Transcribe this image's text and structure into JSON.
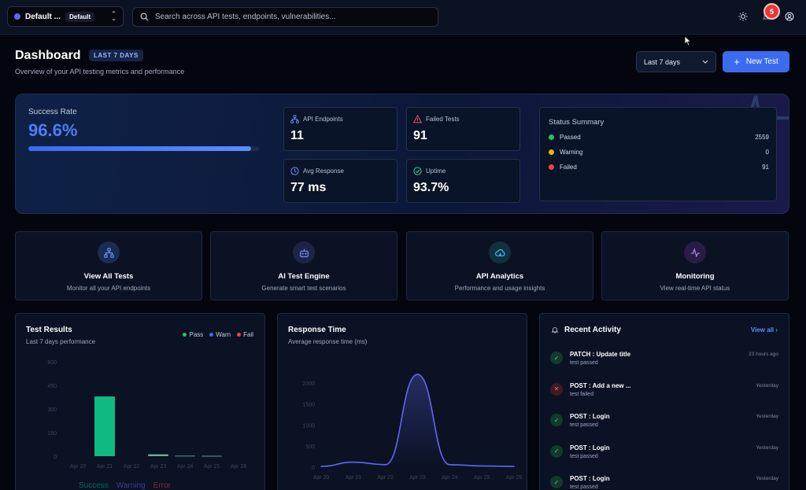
{
  "header": {
    "workspace": "Default ...",
    "workspace_badge": "Default",
    "search_placeholder": "Search across API tests, endpoints, vulnerabilities...",
    "notification_count": "5"
  },
  "page": {
    "title": "Dashboard",
    "range_pill": "LAST 7 DAYS",
    "subtitle": "Overview of your API testing metrics and performance",
    "date_select": "Last 7 days",
    "new_test": "New Test"
  },
  "summary": {
    "success_label": "Success Rate",
    "success_value": "96.6%",
    "success_fraction": 0.966,
    "metrics": [
      {
        "label": "API Endpoints",
        "value": "11",
        "icon": "network-icon",
        "color": "#6a8cf5"
      },
      {
        "label": "Failed Tests",
        "value": "91",
        "icon": "warning-triangle-icon",
        "color": "#ef5350"
      },
      {
        "label": "Avg Response",
        "value": "77 ms",
        "icon": "clock-icon",
        "color": "#7a8cff"
      },
      {
        "label": "Uptime",
        "value": "93.7%",
        "icon": "check-circle-icon",
        "color": "#34d399"
      }
    ],
    "status_title": "Status Summary",
    "status": [
      {
        "label": "Passed",
        "count": "2559",
        "color": "#22c55e"
      },
      {
        "label": "Warning",
        "count": "0",
        "color": "#eab308"
      },
      {
        "label": "Failed",
        "count": "91",
        "color": "#ef4444"
      }
    ]
  },
  "actions": [
    {
      "title": "View All Tests",
      "desc": "Monitor all your API endpoints",
      "icon": "network-icon",
      "bg": "#1a2c52",
      "color": "#6a8cf5"
    },
    {
      "title": "AI Test Engine",
      "desc": "Generate smart test scenarios",
      "icon": "robot-icon",
      "bg": "#1e2445",
      "color": "#7a8cff"
    },
    {
      "title": "API Analytics",
      "desc": "Performance and usage insights",
      "icon": "cloud-icon",
      "bg": "#13303f",
      "color": "#38bdf8"
    },
    {
      "title": "Monitoring",
      "desc": "View real-time API status",
      "icon": "activity-icon",
      "bg": "#2a1d45",
      "color": "#a78bfa"
    }
  ],
  "test_results": {
    "title": "Test Results",
    "subtitle": "Last 7 days performance",
    "legend": [
      "Pass",
      "Warn",
      "Fail"
    ],
    "bottom_legend": [
      "Success",
      "Warning",
      "Error"
    ]
  },
  "response_time": {
    "title": "Response Time",
    "subtitle": "Average response time (ms)"
  },
  "chart_data": [
    {
      "type": "bar",
      "categories": [
        "Apr 20",
        "Apr 21",
        "Apr 22",
        "Apr 23",
        "Apr 24",
        "Apr 25",
        "Apr 26"
      ],
      "series": [
        {
          "name": "Pass",
          "values": [
            0,
            380,
            0,
            12,
            5,
            4,
            0
          ]
        }
      ],
      "yticks": [
        "0",
        "150",
        "300",
        "450",
        "600"
      ],
      "ylim": [
        0,
        600
      ]
    },
    {
      "type": "area",
      "categories": [
        "Apr 20",
        "Apr 21",
        "Apr 22",
        "Apr 23",
        "Apr 24",
        "Apr 25",
        "Apr 26"
      ],
      "values": [
        20,
        120,
        60,
        2200,
        60,
        30,
        20
      ],
      "yticks": [
        "0",
        "500",
        "1000",
        "1500",
        "2000"
      ],
      "ylim": [
        0,
        2500
      ]
    }
  ],
  "activity": {
    "title": "Recent Activity",
    "view_all": "View all",
    "items": [
      {
        "title": "PATCH : Update title",
        "status": "test passed",
        "time": "23 hours ago",
        "ok": true
      },
      {
        "title": "POST : Add a new ...",
        "status": "test failed",
        "time": "Yesterday",
        "ok": false
      },
      {
        "title": "POST : Login",
        "status": "test passed",
        "time": "Yesterday",
        "ok": true
      },
      {
        "title": "POST : Login",
        "status": "test passed",
        "time": "Yesterday",
        "ok": true
      },
      {
        "title": "POST : Login",
        "status": "test passed",
        "time": "Yesterday",
        "ok": true
      }
    ]
  }
}
